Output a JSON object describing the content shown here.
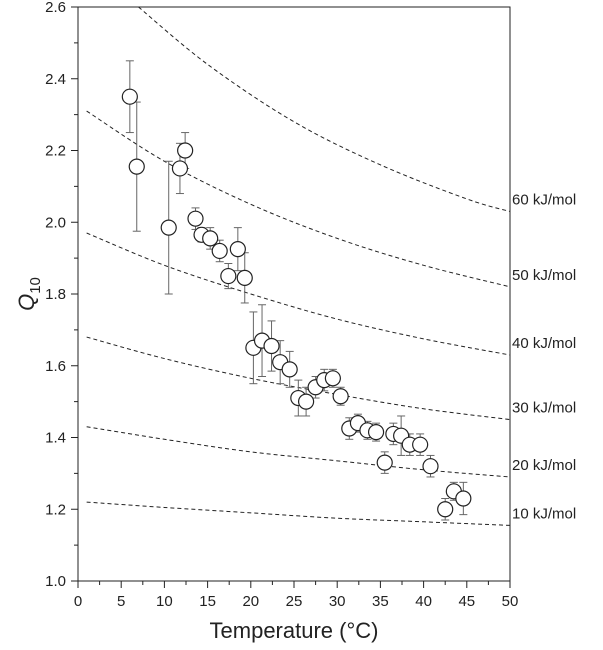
{
  "chart_data": {
    "type": "scatter",
    "title": "",
    "xlabel": "Temperature (°C)",
    "ylabel_main": "Q",
    "ylabel_sub": "10",
    "xlim": [
      0,
      50
    ],
    "ylim": [
      1.0,
      2.6
    ],
    "xticks": [
      0,
      5,
      10,
      15,
      20,
      25,
      30,
      35,
      40,
      45,
      50
    ],
    "yticks": [
      1.0,
      1.2,
      1.4,
      1.6,
      1.8,
      2.0,
      2.2,
      2.4,
      2.6
    ],
    "xtick_labels": [
      "0",
      "5",
      "10",
      "15",
      "20",
      "25",
      "30",
      "35",
      "40",
      "45",
      "50"
    ],
    "ytick_labels": [
      "1.0",
      "1.2",
      "1.4",
      "1.6",
      "1.8",
      "2.0",
      "2.2",
      "2.4",
      "2.6"
    ],
    "grid": false,
    "marker": "open-circle",
    "points": [
      {
        "x": 6.0,
        "y": 2.35,
        "err": 0.1
      },
      {
        "x": 6.8,
        "y": 2.155,
        "err": 0.18
      },
      {
        "x": 10.5,
        "y": 1.985,
        "err": 0.185
      },
      {
        "x": 11.8,
        "y": 2.15,
        "err": 0.07
      },
      {
        "x": 12.4,
        "y": 2.2,
        "err": 0.05
      },
      {
        "x": 13.6,
        "y": 2.01,
        "err": 0.03
      },
      {
        "x": 14.3,
        "y": 1.965,
        "err": 0.02
      },
      {
        "x": 15.3,
        "y": 1.955,
        "err": 0.03
      },
      {
        "x": 16.4,
        "y": 1.92,
        "err": 0.03
      },
      {
        "x": 17.4,
        "y": 1.85,
        "err": 0.035
      },
      {
        "x": 18.5,
        "y": 1.925,
        "err": 0.06
      },
      {
        "x": 19.3,
        "y": 1.845,
        "err": 0.07
      },
      {
        "x": 20.3,
        "y": 1.65,
        "err": 0.1
      },
      {
        "x": 21.3,
        "y": 1.67,
        "err": 0.1
      },
      {
        "x": 22.4,
        "y": 1.655,
        "err": 0.07
      },
      {
        "x": 23.4,
        "y": 1.61,
        "err": 0.06
      },
      {
        "x": 24.5,
        "y": 1.59,
        "err": 0.05
      },
      {
        "x": 25.5,
        "y": 1.51,
        "err": 0.05
      },
      {
        "x": 26.4,
        "y": 1.5,
        "err": 0.04
      },
      {
        "x": 27.5,
        "y": 1.54,
        "err": 0.03
      },
      {
        "x": 28.5,
        "y": 1.56,
        "err": 0.03
      },
      {
        "x": 29.5,
        "y": 1.565,
        "err": 0.025
      },
      {
        "x": 30.4,
        "y": 1.515,
        "err": 0.025
      },
      {
        "x": 31.4,
        "y": 1.425,
        "err": 0.03
      },
      {
        "x": 32.4,
        "y": 1.44,
        "err": 0.025
      },
      {
        "x": 33.5,
        "y": 1.42,
        "err": 0.025
      },
      {
        "x": 34.5,
        "y": 1.415,
        "err": 0.025
      },
      {
        "x": 35.5,
        "y": 1.33,
        "err": 0.03
      },
      {
        "x": 36.5,
        "y": 1.41,
        "err": 0.03
      },
      {
        "x": 37.4,
        "y": 1.405,
        "err": 0.055
      },
      {
        "x": 38.4,
        "y": 1.38,
        "err": 0.03
      },
      {
        "x": 39.6,
        "y": 1.38,
        "err": 0.03
      },
      {
        "x": 40.8,
        "y": 1.32,
        "err": 0.03
      },
      {
        "x": 42.5,
        "y": 1.2,
        "err": 0.03
      },
      {
        "x": 43.5,
        "y": 1.25,
        "err": 0.025
      },
      {
        "x": 44.6,
        "y": 1.23,
        "err": 0.045
      }
    ],
    "curves": [
      {
        "label": "60 kJ/mol",
        "points": [
          [
            7,
            2.6
          ],
          [
            15,
            2.44
          ],
          [
            25,
            2.28
          ],
          [
            35,
            2.16
          ],
          [
            45,
            2.065
          ],
          [
            50,
            2.03
          ]
        ]
      },
      {
        "label": "50 kJ/mol",
        "points": [
          [
            1,
            2.31
          ],
          [
            10,
            2.17
          ],
          [
            20,
            2.05
          ],
          [
            30,
            1.955
          ],
          [
            40,
            1.88
          ],
          [
            50,
            1.82
          ]
        ]
      },
      {
        "label": "40 kJ/mol",
        "points": [
          [
            1,
            1.97
          ],
          [
            10,
            1.88
          ],
          [
            20,
            1.8
          ],
          [
            30,
            1.73
          ],
          [
            40,
            1.675
          ],
          [
            50,
            1.63
          ]
        ]
      },
      {
        "label": "30 kJ/mol",
        "points": [
          [
            1,
            1.68
          ],
          [
            10,
            1.62
          ],
          [
            20,
            1.565
          ],
          [
            30,
            1.52
          ],
          [
            40,
            1.48
          ],
          [
            50,
            1.45
          ]
        ]
      },
      {
        "label": "20 kJ/mol",
        "points": [
          [
            1,
            1.43
          ],
          [
            10,
            1.395
          ],
          [
            20,
            1.36
          ],
          [
            30,
            1.335
          ],
          [
            40,
            1.31
          ],
          [
            50,
            1.29
          ]
        ]
      },
      {
        "label": "10 kJ/mol",
        "points": [
          [
            1,
            1.22
          ],
          [
            10,
            1.205
          ],
          [
            20,
            1.19
          ],
          [
            30,
            1.175
          ],
          [
            40,
            1.165
          ],
          [
            50,
            1.155
          ]
        ]
      }
    ]
  }
}
